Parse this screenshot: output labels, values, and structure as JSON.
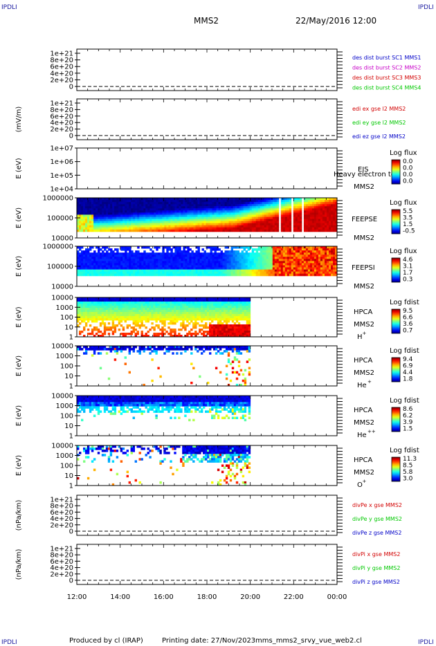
{
  "corners": {
    "tl": "IPDLI",
    "tr": "IPDLI",
    "bl": "IPDLI",
    "br": "IPDLI"
  },
  "header": {
    "spacecraft": "MMS2",
    "datetime": "22/May/2016 12:00"
  },
  "footer": {
    "producer": "Produced by cl (IRAP)",
    "printing_date": "Printing date: 27/Nov/2023",
    "filename": "mms_mms2_srvy_vue_web2.cl"
  },
  "colors": {
    "black": "#000000",
    "mms1": "#0000c8",
    "mms2": "#c800c8",
    "mms3": "#d20000",
    "mms4": "#00c800"
  },
  "time_axis": {
    "ticks": [
      "12:00",
      "14:00",
      "16:00",
      "18:00",
      "20:00",
      "22:00",
      "00:00"
    ]
  },
  "chart_data": [
    {
      "type": "line",
      "id": "dist",
      "ylabel": "",
      "ylim": [
        0,
        1.2e+21
      ],
      "yticks": [
        "1e+21",
        "8e+20",
        "6e+20",
        "4e+20",
        "2e+20",
        "0"
      ],
      "legend": [
        {
          "name": "des dist burst SC1 MMS1",
          "color": "#0000c8"
        },
        {
          "name": "des dist burst SC2 MMS2",
          "color": "#c800c8"
        },
        {
          "name": "des dist burst SC3 MMS3",
          "color": "#d20000"
        },
        {
          "name": "des dist burst SC4 MMS4",
          "color": "#00c800"
        }
      ]
    },
    {
      "type": "line",
      "id": "edi",
      "ylabel": "(mV/m)",
      "ylim": [
        0,
        1.2e+21
      ],
      "yticks": [
        "1e+21",
        "8e+20",
        "6e+20",
        "4e+20",
        "2e+20",
        "0"
      ],
      "legend": [
        {
          "name": "edi ex gse l2 MMS2",
          "color": "#d20000"
        },
        {
          "name": "edi ey gse l2 MMS2",
          "color": "#00c800"
        },
        {
          "name": "edi ez gse l2 MMS2",
          "color": "#0000c8"
        }
      ]
    },
    {
      "type": "heatmap",
      "id": "eis",
      "ylabel": "E (eV)",
      "yticks": [
        "1e+07",
        "1e+06",
        "1e+05",
        "1e+04"
      ],
      "instrument": "EIS",
      "overlay": "Heavy electron to",
      "sc": "MMS2",
      "cbar_title": "Log flux",
      "cbar_ticks": [
        "0.0",
        "0.0",
        "0.0",
        "0.0"
      ],
      "coverage": []
    },
    {
      "type": "heatmap",
      "id": "feepse",
      "ylabel": "E (eV)",
      "yticks": [
        "1000000",
        "100000",
        "10000"
      ],
      "instrument": "FEEPSE",
      "sc": "MMS2",
      "cbar_title": "Log flux",
      "cbar_ticks": [
        "5.5",
        "3.5",
        "1.5",
        "-0.5"
      ],
      "coverage": [
        12.0,
        24.0
      ]
    },
    {
      "type": "heatmap",
      "id": "feepsi",
      "ylabel": "E (eV)",
      "yticks": [
        "1000000",
        "100000",
        "10000"
      ],
      "instrument": "FEEPSI",
      "sc": "MMS2",
      "cbar_title": "Log flux",
      "cbar_ticks": [
        "4.6",
        "3.1",
        "1.7",
        "0.3"
      ],
      "coverage": [
        12.0,
        24.0
      ]
    },
    {
      "type": "heatmap",
      "id": "hpca_h",
      "ylabel": "E (eV)",
      "yticks": [
        "10000",
        "1000",
        "100",
        "10",
        "1"
      ],
      "instrument": "HPCA",
      "sc": "MMS2",
      "species": "H",
      "species_sup": "+",
      "cbar_title": "Log fdist",
      "cbar_ticks": [
        "9.5",
        "6.6",
        "3.6",
        "0.7"
      ],
      "coverage": [
        12.0,
        20.0
      ]
    },
    {
      "type": "heatmap",
      "id": "hpca_he",
      "ylabel": "E (eV)",
      "yticks": [
        "10000",
        "1000",
        "100",
        "10",
        "1"
      ],
      "instrument": "HPCA",
      "sc": "MMS2",
      "species": "He",
      "species_sup": "+",
      "cbar_title": "Log fdist",
      "cbar_ticks": [
        "9.4",
        "6.9",
        "4.4",
        "1.8"
      ],
      "coverage": [
        12.0,
        20.0
      ]
    },
    {
      "type": "heatmap",
      "id": "hpca_hepp",
      "ylabel": "E (eV)",
      "yticks": [
        "10000",
        "1000",
        "100",
        "10",
        "1"
      ],
      "instrument": "HPCA",
      "sc": "MMS2",
      "species": "He",
      "species_sup": "++",
      "cbar_title": "Log fdist",
      "cbar_ticks": [
        "8.6",
        "6.2",
        "3.9",
        "1.5"
      ],
      "coverage": [
        12.0,
        20.0
      ]
    },
    {
      "type": "heatmap",
      "id": "hpca_o",
      "ylabel": "E (eV)",
      "yticks": [
        "10000",
        "1000",
        "100",
        "10",
        "1"
      ],
      "instrument": "HPCA",
      "sc": "MMS2",
      "species": "O",
      "species_sup": "+",
      "cbar_title": "Log fdist",
      "cbar_ticks": [
        "11.3",
        "8.5",
        "5.8",
        "3.0"
      ],
      "coverage": [
        12.0,
        20.0
      ]
    },
    {
      "type": "line",
      "id": "divpe",
      "ylabel": "(nPa/km)",
      "ylim": [
        0,
        1.2e+21
      ],
      "yticks": [
        "1e+21",
        "8e+20",
        "6e+20",
        "4e+20",
        "2e+20",
        "0"
      ],
      "legend": [
        {
          "name": "divPe x gse MMS2",
          "color": "#d20000"
        },
        {
          "name": "divPe y gse MMS2",
          "color": "#00c800"
        },
        {
          "name": "divPe z gse MMS2",
          "color": "#0000c8"
        }
      ]
    },
    {
      "type": "line",
      "id": "divpi",
      "ylabel": "(nPa/km)",
      "ylim": [
        0,
        1.2e+21
      ],
      "yticks": [
        "1e+21",
        "8e+20",
        "6e+20",
        "4e+20",
        "2e+20",
        "0"
      ],
      "legend": [
        {
          "name": "divPi x gse MMS2",
          "color": "#d20000"
        },
        {
          "name": "divPi y gse MMS2",
          "color": "#00c800"
        },
        {
          "name": "divPi z gse MMS2",
          "color": "#0000c8"
        }
      ]
    }
  ]
}
